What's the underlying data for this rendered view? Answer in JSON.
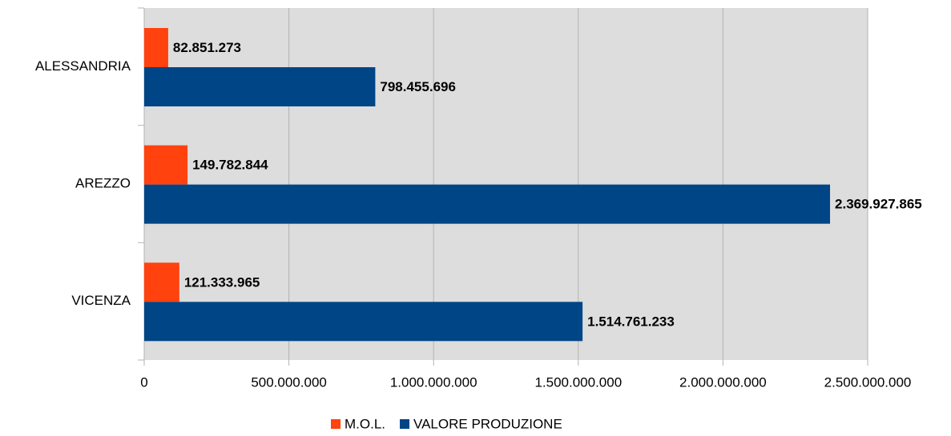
{
  "chart_data": {
    "type": "hbar",
    "categories": [
      "ALESSANDRIA",
      "AREZZO",
      "VICENZA"
    ],
    "series": [
      {
        "name": "M.O.L.",
        "color": "#ff420e",
        "values": [
          82851273,
          149782844,
          121333965
        ],
        "value_labels": [
          "82.851.273",
          "149.782.844",
          "121.333.965"
        ]
      },
      {
        "name": "VALORE PRODUZIONE",
        "color": "#004586",
        "values": [
          798455696,
          2369927865,
          1514761233
        ],
        "value_labels": [
          "798.455.696",
          "2.369.927.865",
          "1.514.761.233"
        ]
      }
    ],
    "xlim": [
      0,
      2500000000
    ],
    "xticks": [
      0,
      {
        "value": 500000000,
        "label": "500.000.000"
      },
      {
        "value": 1000000000,
        "label": "1.000.000.000"
      },
      {
        "value": 1500000000,
        "label": "1.500.000.000"
      },
      {
        "value": 2000000000,
        "label": "2.000.000.000"
      },
      {
        "value": 2500000000,
        "label": "2.500.000.000"
      }
    ],
    "grid": true,
    "legend": "bottom"
  }
}
